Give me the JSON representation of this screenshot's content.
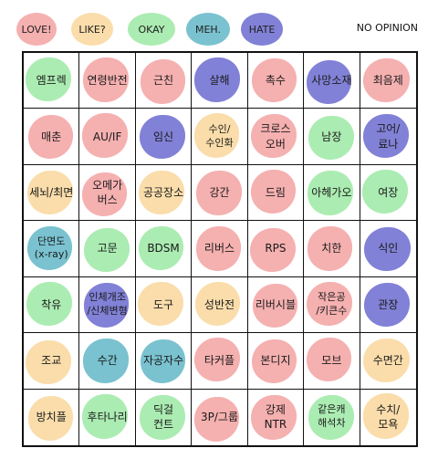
{
  "legend": {
    "love": "LOVE!",
    "like": "LIKE?",
    "okay": "OKAY",
    "meh": "MEH.",
    "hate": "HATE",
    "no_opinion": "NO OPINION"
  },
  "colors": {
    "love": "#ef8080",
    "like": "#f7c878",
    "okay": "#78e182",
    "meh": "#46aabe",
    "hate": "#5050c8"
  },
  "grid": {
    "rows": [
      [
        {
          "text": "엠프렉",
          "rating": "okay"
        },
        {
          "text": "연령반전",
          "rating": "love"
        },
        {
          "text": "근친",
          "rating": "love"
        },
        {
          "text": "살해",
          "rating": "hate"
        },
        {
          "text": "촉수",
          "rating": "love"
        },
        {
          "text": "사망소재",
          "rating": "hate"
        },
        {
          "text": "최음제",
          "rating": "love"
        }
      ],
      [
        {
          "text": "매춘",
          "rating": "love"
        },
        {
          "text": "AU/IF",
          "rating": "love"
        },
        {
          "text": "임신",
          "rating": "hate"
        },
        {
          "text": "수인/\n수인화",
          "rating": "like"
        },
        {
          "text": "크로스\n오버",
          "rating": "love"
        },
        {
          "text": "남장",
          "rating": "okay"
        },
        {
          "text": "고어/\n료나",
          "rating": "hate"
        }
      ],
      [
        {
          "text": "세뇌/최면",
          "rating": "like"
        },
        {
          "text": "오메가\n버스",
          "rating": "love"
        },
        {
          "text": "공공장소",
          "rating": "like"
        },
        {
          "text": "강간",
          "rating": "love"
        },
        {
          "text": "드림",
          "rating": "love"
        },
        {
          "text": "아헤가오",
          "rating": "okay"
        },
        {
          "text": "여장",
          "rating": "okay"
        }
      ],
      [
        {
          "text": "단면도\n(x-ray)",
          "rating": "meh"
        },
        {
          "text": "고문",
          "rating": "okay"
        },
        {
          "text": "BDSM",
          "rating": "okay"
        },
        {
          "text": "리버스",
          "rating": "love"
        },
        {
          "text": "RPS",
          "rating": "love"
        },
        {
          "text": "치한",
          "rating": "love"
        },
        {
          "text": "식인",
          "rating": "hate"
        }
      ],
      [
        {
          "text": "착유",
          "rating": "okay"
        },
        {
          "text": "인체개조\n/신체변형",
          "rating": "hate"
        },
        {
          "text": "도구",
          "rating": "like"
        },
        {
          "text": "성반전",
          "rating": "like"
        },
        {
          "text": "리버시블",
          "rating": "love"
        },
        {
          "text": "작은공\n/키큰수",
          "rating": "love"
        },
        {
          "text": "관장",
          "rating": "hate"
        }
      ],
      [
        {
          "text": "조교",
          "rating": "like"
        },
        {
          "text": "수간",
          "rating": "meh"
        },
        {
          "text": "자공자수",
          "rating": "meh"
        },
        {
          "text": "타커플",
          "rating": "love"
        },
        {
          "text": "본디지",
          "rating": "love"
        },
        {
          "text": "모브",
          "rating": "love"
        },
        {
          "text": "수면간",
          "rating": "like"
        }
      ],
      [
        {
          "text": "방치플",
          "rating": "like"
        },
        {
          "text": "후타나리",
          "rating": "okay"
        },
        {
          "text": "딕걸\n컨트",
          "rating": "okay"
        },
        {
          "text": "3P/그룹",
          "rating": "love"
        },
        {
          "text": "강제\nNTR",
          "rating": "love"
        },
        {
          "text": "같은캐\n해석차",
          "rating": "okay"
        },
        {
          "text": "수치/\n모욕",
          "rating": "like"
        }
      ]
    ]
  }
}
